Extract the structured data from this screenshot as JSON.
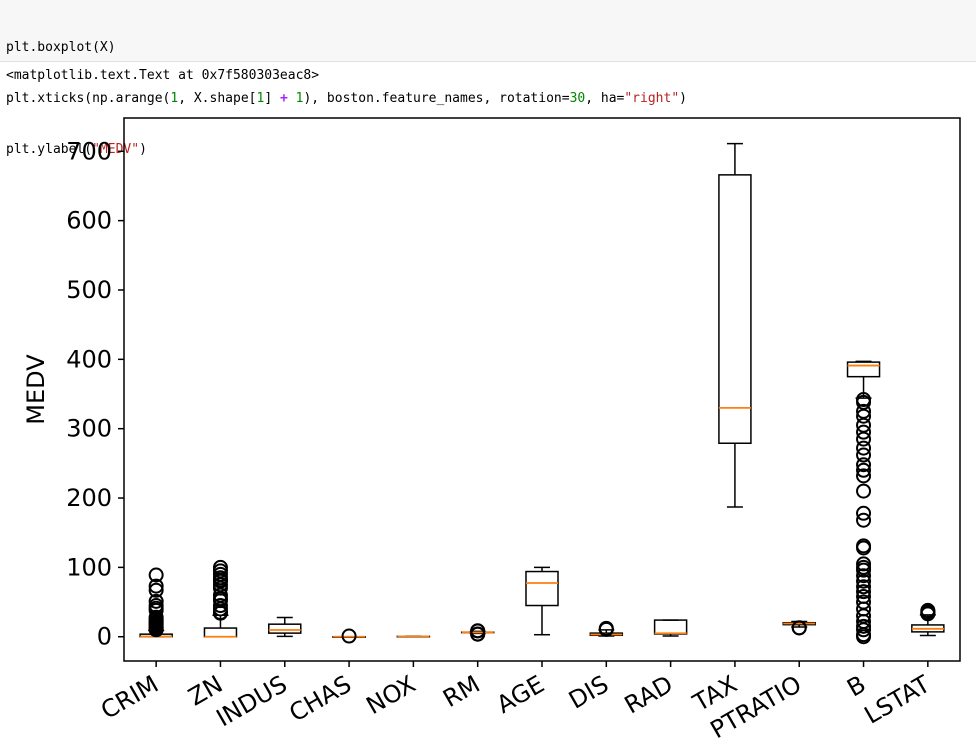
{
  "code_cell": {
    "lines": [
      [
        {
          "t": "plt.boxplot(X)",
          "c": ""
        }
      ],
      [
        {
          "t": "plt.xticks(np.arange(",
          "c": ""
        },
        {
          "t": "1",
          "c": "num"
        },
        {
          "t": ", X.shape[",
          "c": ""
        },
        {
          "t": "1",
          "c": "num"
        },
        {
          "t": "] ",
          "c": ""
        },
        {
          "t": "+",
          "c": "op"
        },
        {
          "t": " ",
          "c": ""
        },
        {
          "t": "1",
          "c": "num"
        },
        {
          "t": "), boston.feature_names, rotation=",
          "c": ""
        },
        {
          "t": "30",
          "c": "num"
        },
        {
          "t": ", ha=",
          "c": ""
        },
        {
          "t": "\"right\"",
          "c": "str"
        },
        {
          "t": ")",
          "c": ""
        }
      ],
      [
        {
          "t": "plt.ylabel(",
          "c": ""
        },
        {
          "t": "\"MEDV\"",
          "c": "str"
        },
        {
          "t": ")",
          "c": ""
        }
      ]
    ]
  },
  "output_text": "<matplotlib.text.Text at 0x7f580303eac8>",
  "colors": {
    "median": "#ff7f0e",
    "box": "#000000"
  },
  "chart_data": {
    "type": "boxplot",
    "title": "",
    "xlabel": "",
    "ylabel": "MEDV",
    "ylim": [
      -35,
      748
    ],
    "yticks": [
      0,
      100,
      200,
      300,
      400,
      500,
      600,
      700
    ],
    "xtick_rotation": 30,
    "grid": false,
    "categories": [
      "CRIM",
      "ZN",
      "INDUS",
      "CHAS",
      "NOX",
      "RM",
      "AGE",
      "DIS",
      "RAD",
      "TAX",
      "PTRATIO",
      "B",
      "LSTAT"
    ],
    "boxes": [
      {
        "label": "CRIM",
        "whislo": 0,
        "q1": 0.1,
        "med": 0.3,
        "q3": 3.7,
        "whishi": 9,
        "fliers": [
          10,
          11,
          13,
          14,
          16,
          18,
          20,
          22,
          24,
          26,
          28,
          38,
          41,
          45,
          51,
          67,
          73,
          89
        ]
      },
      {
        "label": "ZN",
        "whislo": 0,
        "q1": 0,
        "med": 0,
        "q3": 12.5,
        "whishi": 31,
        "fliers": [
          34,
          35,
          40,
          45,
          52,
          55,
          60,
          70,
          75,
          80,
          82,
          85,
          90,
          95,
          100
        ]
      },
      {
        "label": "INDUS",
        "whislo": 0.5,
        "q1": 5.2,
        "med": 9.7,
        "q3": 18.1,
        "whishi": 27.7,
        "fliers": []
      },
      {
        "label": "CHAS",
        "whislo": 0,
        "q1": 0,
        "med": 0,
        "q3": 0,
        "whishi": 0,
        "fliers": [
          1
        ]
      },
      {
        "label": "NOX",
        "whislo": 0.4,
        "q1": 0.45,
        "med": 0.54,
        "q3": 0.62,
        "whishi": 0.87,
        "fliers": []
      },
      {
        "label": "RM",
        "whislo": 4.9,
        "q1": 5.9,
        "med": 6.2,
        "q3": 6.6,
        "whishi": 7.7,
        "fliers": [
          3.6,
          4,
          8.3,
          8.7
        ]
      },
      {
        "label": "AGE",
        "whislo": 2.9,
        "q1": 45,
        "med": 77.5,
        "q3": 94,
        "whishi": 100,
        "fliers": []
      },
      {
        "label": "DIS",
        "whislo": 1.1,
        "q1": 2.1,
        "med": 3.2,
        "q3": 5.2,
        "whishi": 9.8,
        "fliers": [
          10.6,
          12.1
        ]
      },
      {
        "label": "RAD",
        "whislo": 1,
        "q1": 4,
        "med": 5,
        "q3": 24,
        "whishi": 24,
        "fliers": []
      },
      {
        "label": "TAX",
        "whislo": 187,
        "q1": 279,
        "med": 330,
        "q3": 666,
        "whishi": 711,
        "fliers": []
      },
      {
        "label": "PTRATIO",
        "whislo": 14,
        "q1": 17.4,
        "med": 19.05,
        "q3": 20.2,
        "whishi": 22,
        "fliers": [
          12.6,
          13
        ]
      },
      {
        "label": "B",
        "whislo": 344,
        "q1": 375,
        "med": 391,
        "q3": 396,
        "whishi": 397,
        "fliers": [
          0,
          3,
          10,
          15,
          22,
          30,
          40,
          50,
          58,
          65,
          72,
          80,
          88,
          96,
          100,
          105,
          128,
          131,
          168,
          178,
          210,
          232,
          240,
          248,
          262,
          272,
          285,
          295,
          305,
          318,
          325,
          338,
          342
        ]
      },
      {
        "label": "LSTAT",
        "whislo": 1.7,
        "q1": 7,
        "med": 11.4,
        "q3": 17,
        "whishi": 31.5,
        "fliers": [
          33,
          34,
          35,
          36.9,
          38
        ]
      }
    ]
  }
}
